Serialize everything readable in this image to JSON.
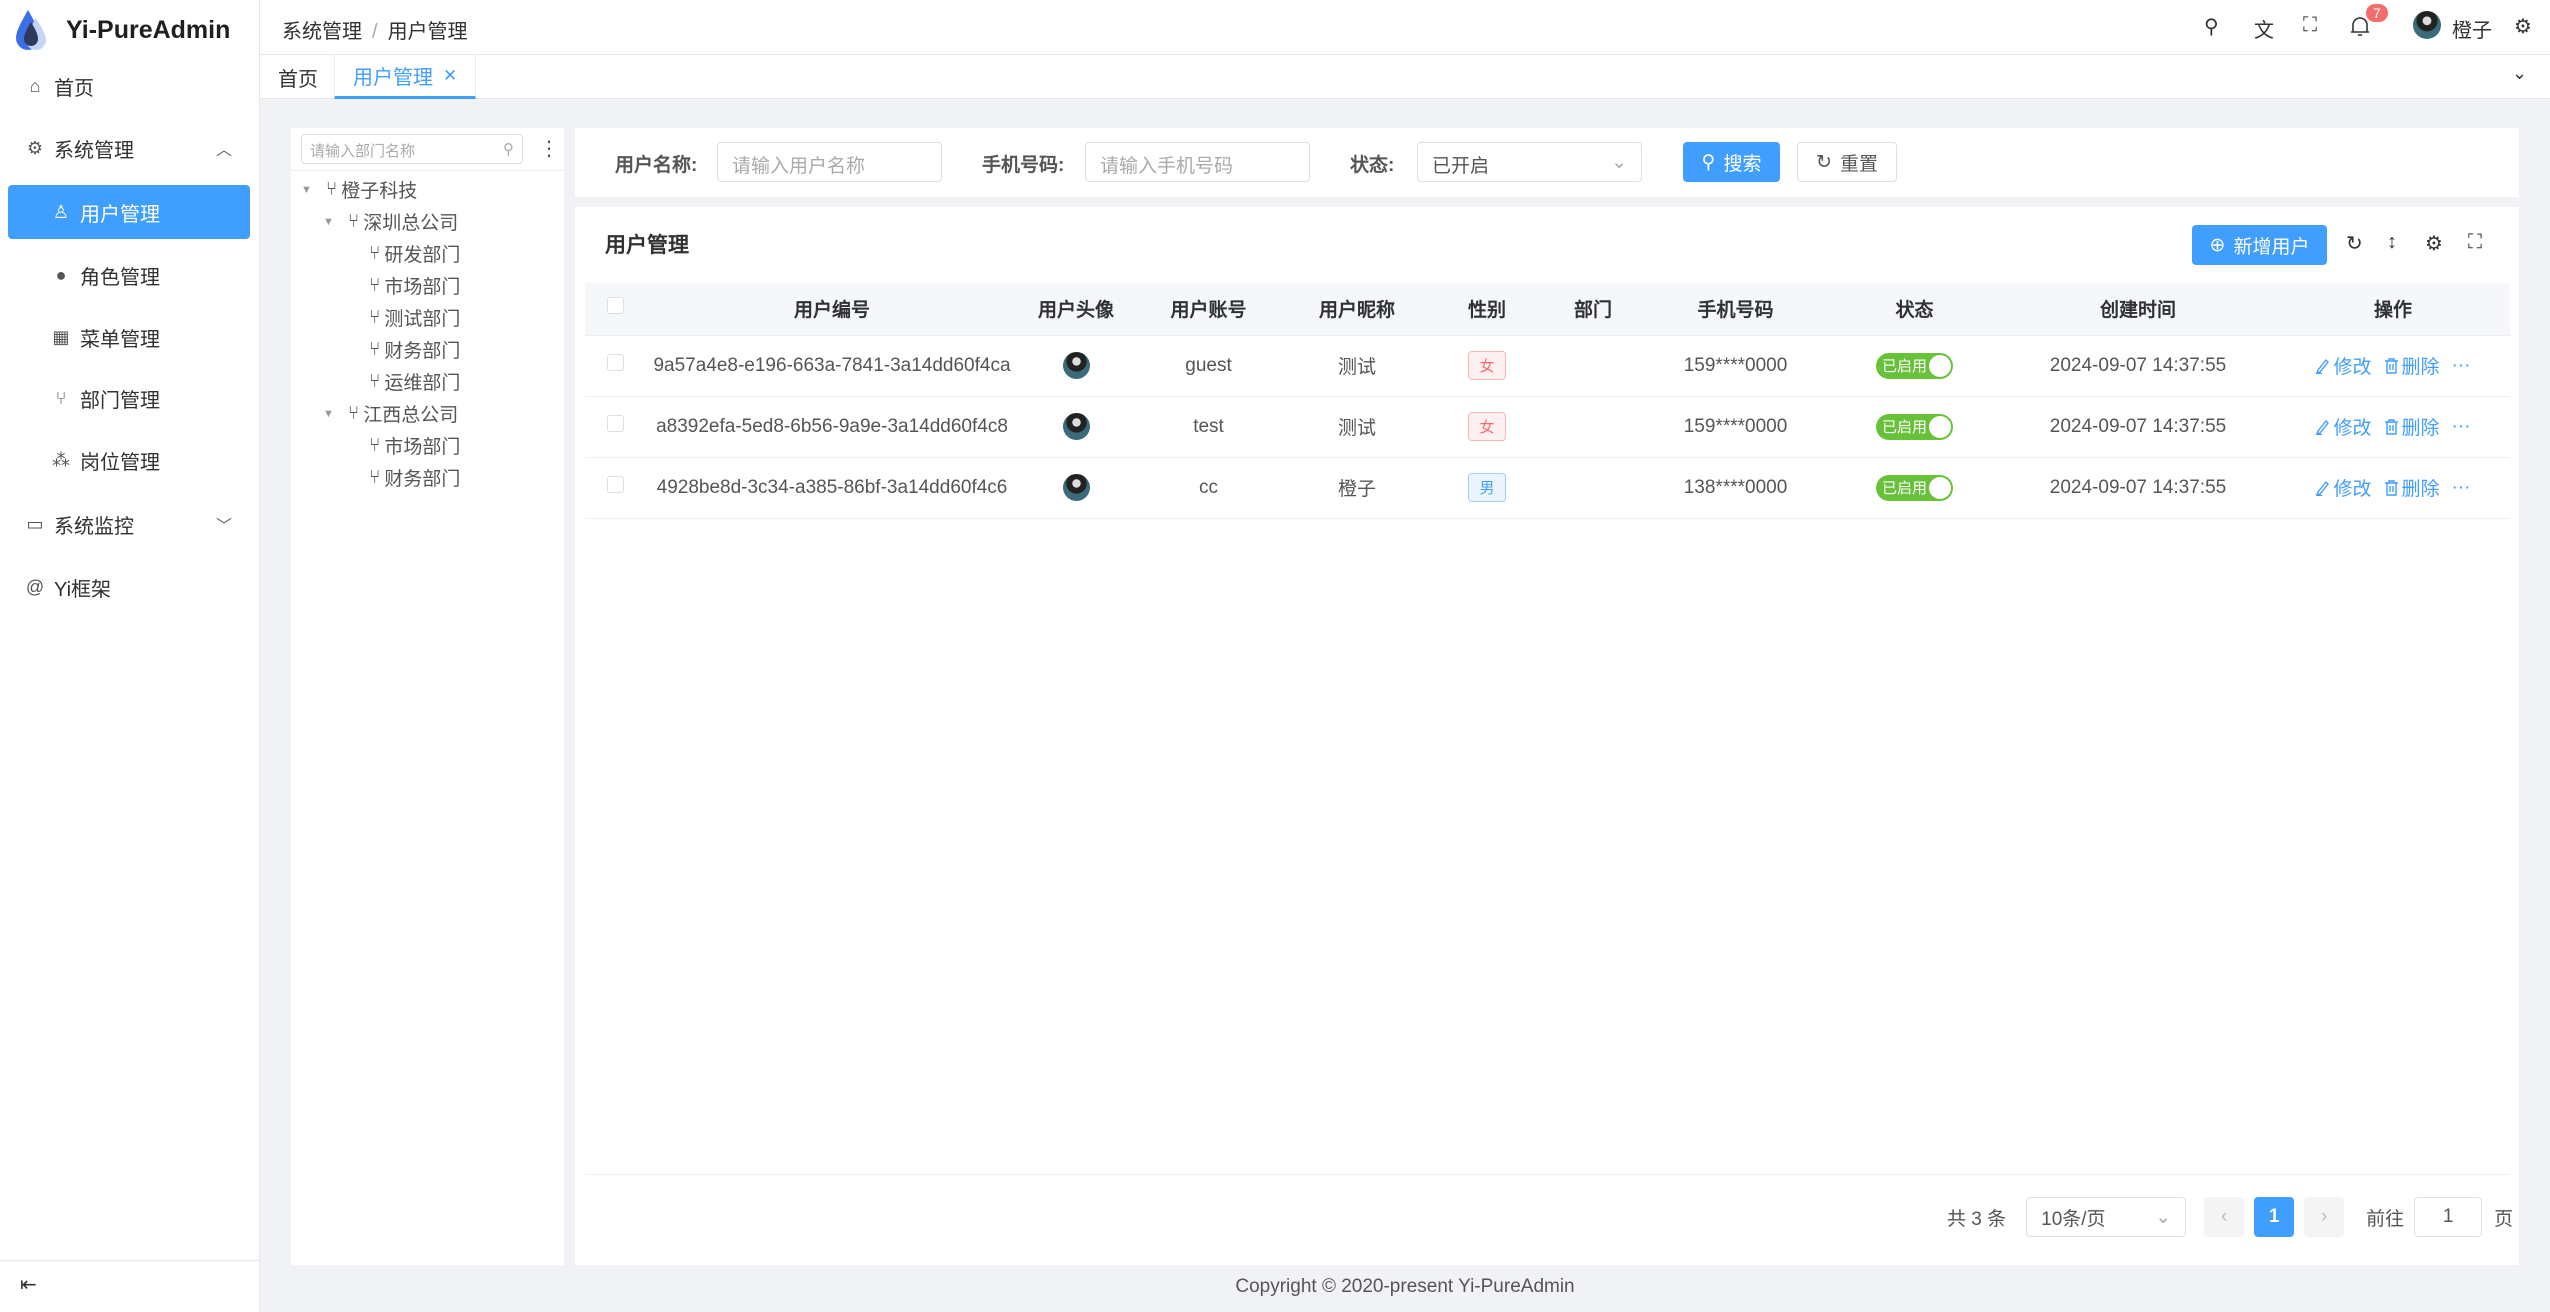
{
  "app": {
    "title": "Yi-PureAdmin"
  },
  "sidebar": {
    "items": [
      {
        "label": "首页",
        "icon": "home-icon"
      },
      {
        "label": "系统管理",
        "icon": "gear-icon"
      },
      {
        "label": "用户管理",
        "icon": "user-icon"
      },
      {
        "label": "角色管理",
        "icon": "role-icon"
      },
      {
        "label": "菜单管理",
        "icon": "menu-icon"
      },
      {
        "label": "部门管理",
        "icon": "branch-icon"
      },
      {
        "label": "岗位管理",
        "icon": "post-icon"
      },
      {
        "label": "系统监控",
        "icon": "monitor-icon"
      },
      {
        "label": "Yi框架",
        "icon": "at-icon"
      }
    ]
  },
  "header": {
    "breadcrumb": [
      "系统管理",
      "用户管理"
    ],
    "notification_count": "7",
    "username": "橙子"
  },
  "tabs": [
    {
      "label": "首页"
    },
    {
      "label": "用户管理"
    }
  ],
  "tree": {
    "placeholder": "请输入部门名称",
    "nodes": [
      "橙子科技",
      "深圳总公司",
      "研发部门",
      "市场部门",
      "测试部门",
      "财务部门",
      "运维部门",
      "江西总公司",
      "市场部门",
      "财务部门"
    ]
  },
  "filter": {
    "username_label": "用户名称:",
    "username_placeholder": "请输入用户名称",
    "phone_label": "手机号码:",
    "phone_placeholder": "请输入手机号码",
    "status_label": "状态:",
    "status_value": "已开启",
    "search": "搜索",
    "reset": "重置"
  },
  "table": {
    "title": "用户管理",
    "add_button": "新增用户",
    "columns": [
      "用户编号",
      "用户头像",
      "用户账号",
      "用户昵称",
      "性别",
      "部门",
      "手机号码",
      "状态",
      "创建时间",
      "操作"
    ],
    "rows": [
      {
        "id": "9a57a4e8-e196-663a-7841-3a14dd60f4ca",
        "account": "guest",
        "nickname": "测试",
        "gender": "女",
        "dept": "",
        "phone": "159****0000",
        "status": "已启用",
        "created": "2024-09-07 14:37:55"
      },
      {
        "id": "a8392efa-5ed8-6b56-9a9e-3a14dd60f4c8",
        "account": "test",
        "nickname": "测试",
        "gender": "女",
        "dept": "",
        "phone": "159****0000",
        "status": "已启用",
        "created": "2024-09-07 14:37:55"
      },
      {
        "id": "4928be8d-3c34-a385-86bf-3a14dd60f4c6",
        "account": "cc",
        "nickname": "橙子",
        "gender": "男",
        "dept": "",
        "phone": "138****0000",
        "status": "已启用",
        "created": "2024-09-07 14:37:55"
      }
    ],
    "edit": "修改",
    "delete": "删除"
  },
  "pagination": {
    "total": "共 3 条",
    "page_size": "10条/页",
    "current": "1",
    "goto": "前往",
    "goto_value": "1",
    "page_unit": "页"
  },
  "footer": "Copyright © 2020-present Yi-PureAdmin",
  "colors": {
    "primary": "#409eff",
    "success": "#67c23a",
    "danger": "#f56c6c"
  }
}
